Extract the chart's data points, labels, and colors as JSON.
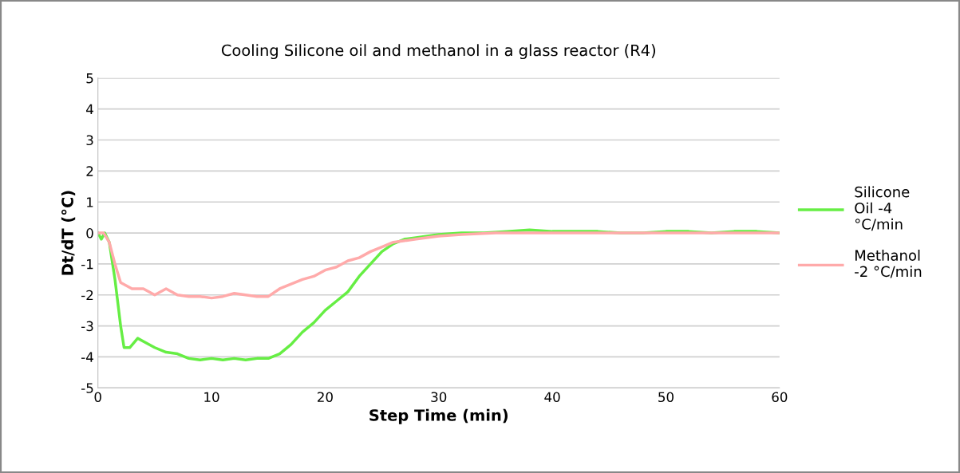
{
  "chart_data": {
    "type": "line",
    "title": "Cooling Silicone oil and methanol in a glass reactor (R4)",
    "xlabel": "Step Time (min)",
    "ylabel": "Dt/dT (°C)",
    "xlim": [
      0,
      60
    ],
    "xticks": [
      0,
      10,
      20,
      30,
      40,
      50,
      60
    ],
    "ylim": [
      -5,
      5
    ],
    "yticks": [
      -5,
      -4,
      -3,
      -2,
      -1,
      0,
      1,
      2,
      3,
      4,
      5
    ],
    "grid": "y",
    "legend": "right",
    "marker": "none",
    "line_style": "solid",
    "series": [
      {
        "name": "Silicone Oil -4 °C/min",
        "color": "#66ee44",
        "x": [
          0,
          0.3,
          0.6,
          1,
          1.5,
          2,
          2.3,
          2.8,
          3.5,
          4,
          5,
          6,
          7,
          8,
          9,
          10,
          11,
          12,
          13,
          14,
          15,
          16,
          17,
          18,
          19,
          20,
          21,
          22,
          23,
          24,
          25,
          26,
          27,
          28,
          29,
          30,
          32,
          34,
          36,
          38,
          40,
          42,
          44,
          46,
          48,
          50,
          52,
          54,
          56,
          58,
          60
        ],
        "values": [
          0,
          -0.2,
          0,
          -0.3,
          -1.5,
          -3.0,
          -3.7,
          -3.7,
          -3.4,
          -3.5,
          -3.7,
          -3.85,
          -3.9,
          -4.05,
          -4.1,
          -4.05,
          -4.1,
          -4.05,
          -4.1,
          -4.05,
          -4.05,
          -3.9,
          -3.6,
          -3.2,
          -2.9,
          -2.5,
          -2.2,
          -1.9,
          -1.4,
          -1.0,
          -0.6,
          -0.35,
          -0.2,
          -0.15,
          -0.1,
          -0.05,
          0,
          0,
          0.05,
          0.1,
          0.05,
          0.05,
          0.05,
          0,
          0,
          0.05,
          0.05,
          0,
          0.05,
          0.05,
          0
        ]
      },
      {
        "name": "Methanol -2 °C/min",
        "color": "#ffaaaa",
        "x": [
          0,
          0.5,
          1,
          1.5,
          2,
          3,
          4,
          5,
          6,
          7,
          8,
          9,
          10,
          11,
          12,
          13,
          14,
          15,
          16,
          17,
          18,
          19,
          20,
          21,
          22,
          23,
          24,
          25,
          26,
          27,
          28,
          30,
          32,
          35,
          40,
          45,
          50,
          55,
          60
        ],
        "values": [
          0,
          0,
          -0.3,
          -1.0,
          -1.6,
          -1.8,
          -1.8,
          -2.0,
          -1.8,
          -2.0,
          -2.05,
          -2.05,
          -2.1,
          -2.05,
          -1.95,
          -2.0,
          -2.05,
          -2.05,
          -1.8,
          -1.65,
          -1.5,
          -1.4,
          -1.2,
          -1.1,
          -0.9,
          -0.8,
          -0.6,
          -0.45,
          -0.3,
          -0.25,
          -0.2,
          -0.1,
          -0.05,
          0,
          0,
          0,
          0,
          0,
          0
        ]
      }
    ]
  }
}
